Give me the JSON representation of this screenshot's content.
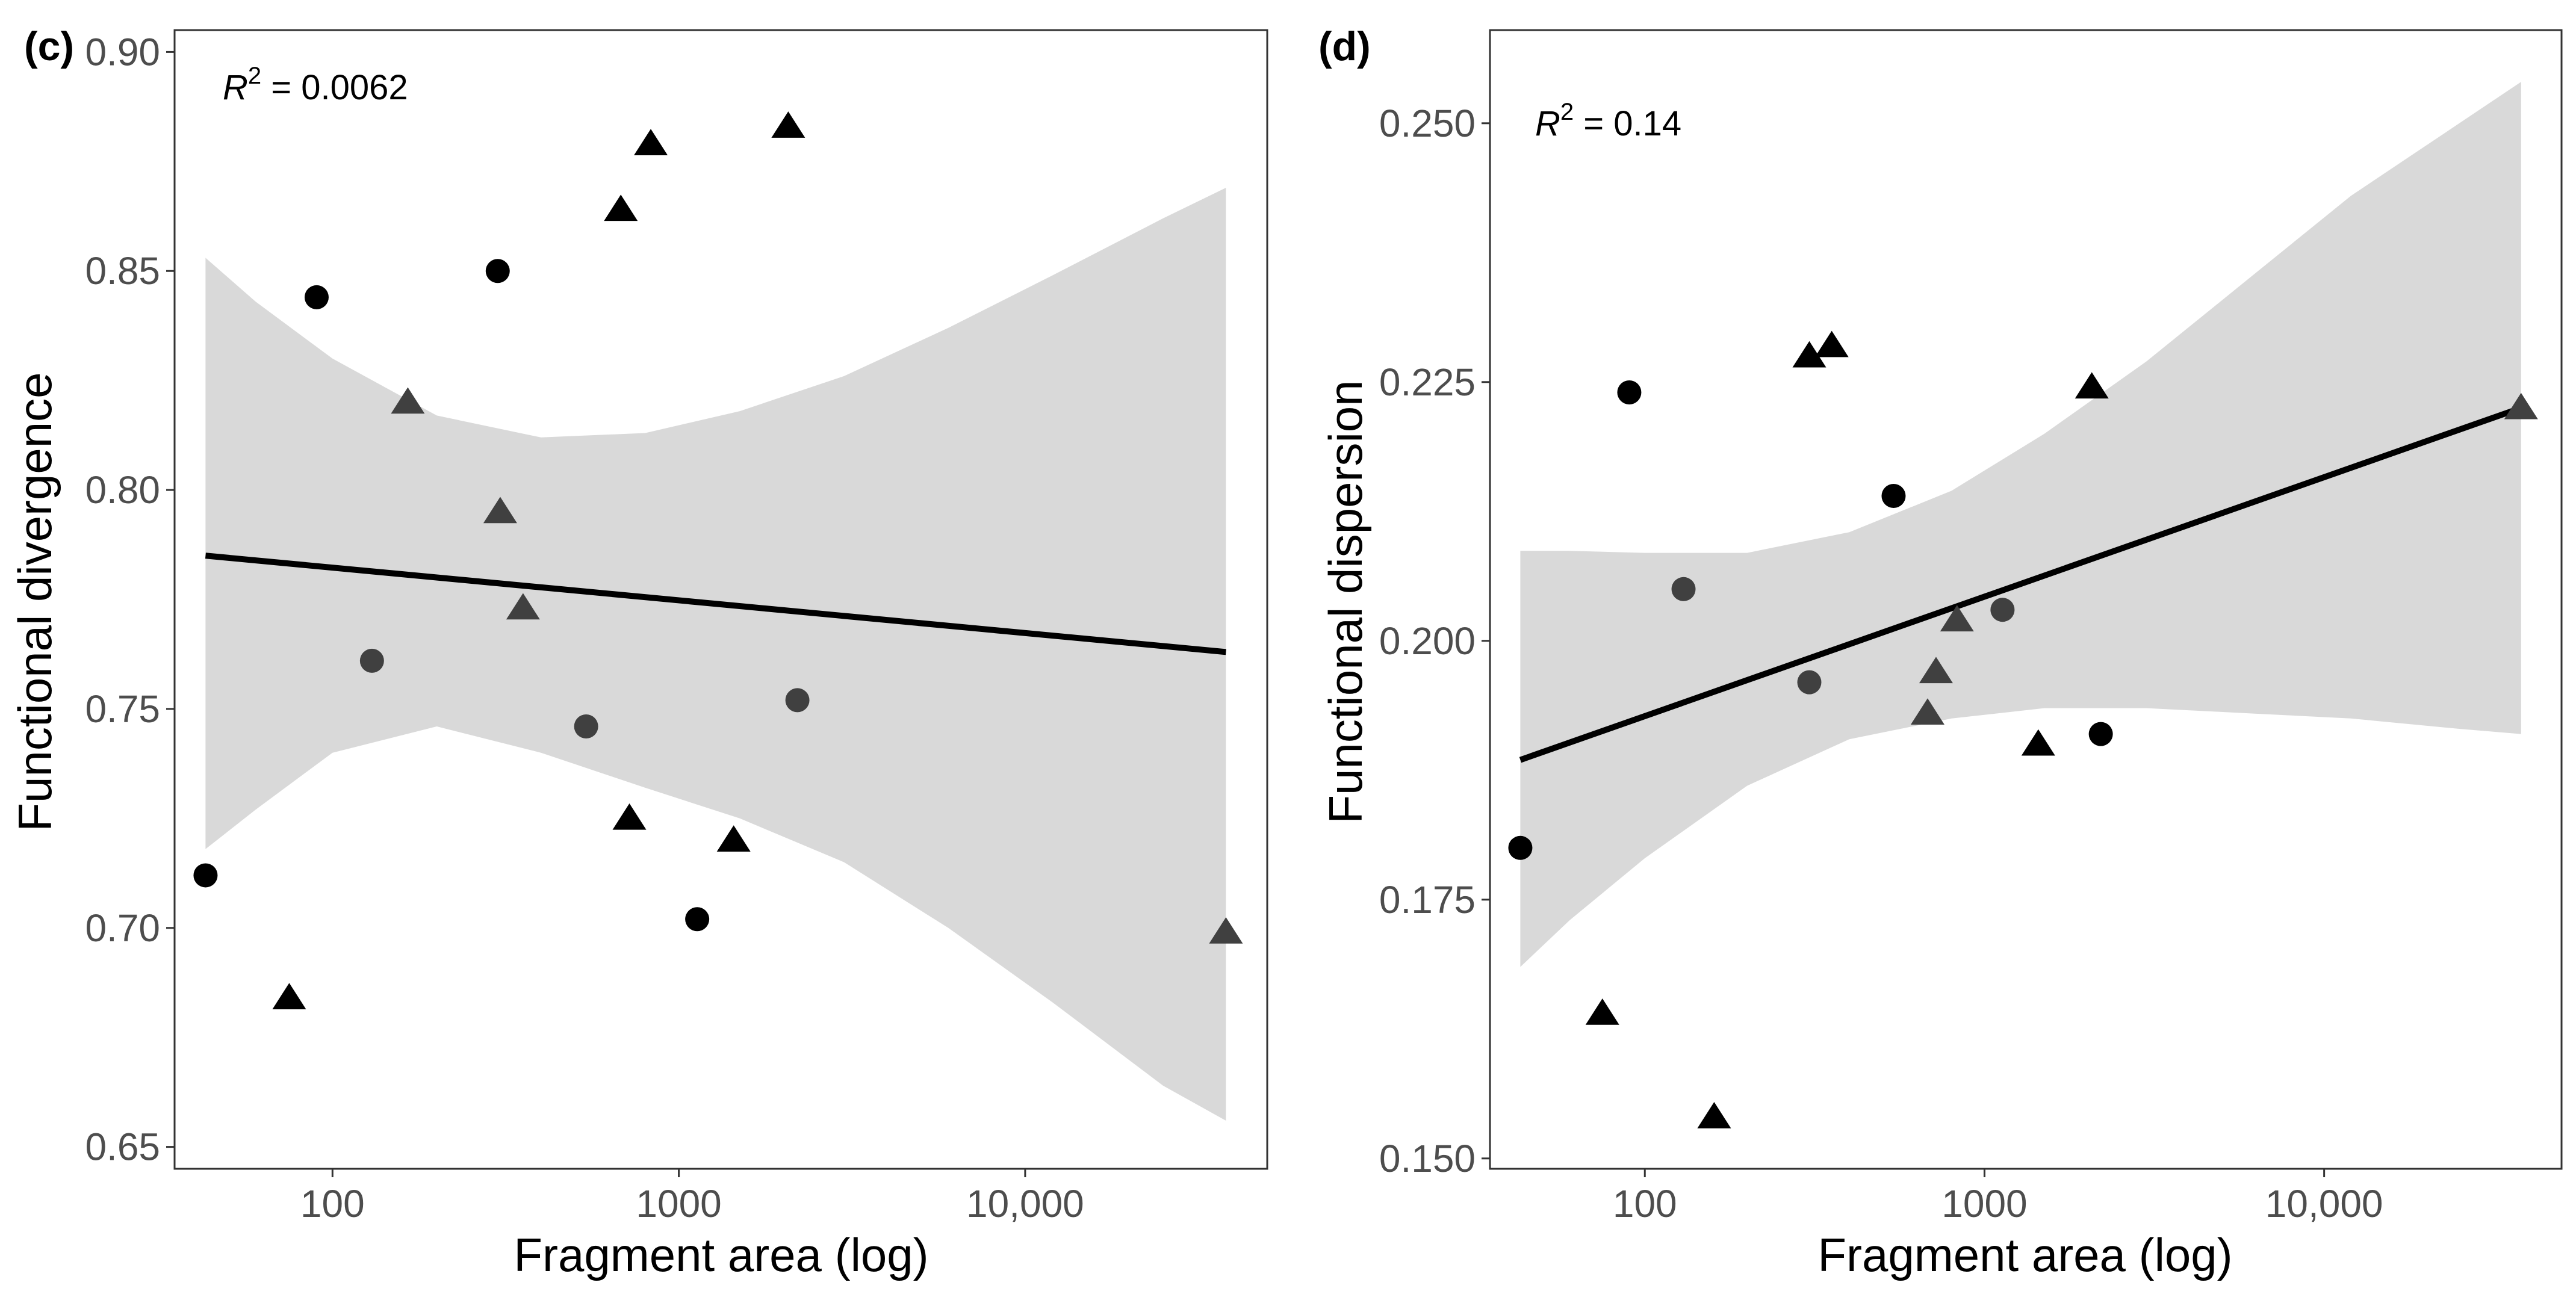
{
  "chart_data": [
    {
      "type": "scatter",
      "panel_label": "(c)",
      "annotation": {
        "r2_symbol": "R",
        "r2_exp": "2",
        "r2_text": " = 0.0062"
      },
      "xlabel": "Fragment area (log)",
      "ylabel": "Functional divergence",
      "x_scale": "log",
      "xlim": [
        35,
        50000
      ],
      "ylim": [
        0.645,
        0.905
      ],
      "x_ticks": [
        100,
        1000,
        10000
      ],
      "x_tick_labels": [
        "100",
        "1000",
        "10,000"
      ],
      "y_ticks": [
        0.65,
        0.7,
        0.75,
        0.8,
        0.85,
        0.9
      ],
      "y_tick_labels": [
        "0.65",
        "0.70",
        "0.75",
        "0.80",
        "0.85",
        "0.90"
      ],
      "grid": false,
      "fit_line": {
        "x": [
          43,
          38000
        ],
        "y": [
          0.785,
          0.763
        ]
      },
      "confidence_band": {
        "x": [
          43,
          60,
          100,
          200,
          400,
          800,
          1500,
          3000,
          6000,
          12000,
          25000,
          38000
        ],
        "upper": [
          0.853,
          0.843,
          0.83,
          0.817,
          0.812,
          0.813,
          0.818,
          0.826,
          0.837,
          0.849,
          0.862,
          0.869
        ],
        "lower": [
          0.718,
          0.727,
          0.74,
          0.746,
          0.74,
          0.732,
          0.725,
          0.715,
          0.7,
          0.683,
          0.664,
          0.656
        ]
      },
      "series": [
        {
          "name": "circle-black",
          "shape": "circle",
          "color": "#000000",
          "points": [
            [
              43,
              0.712
            ],
            [
              90,
              0.844
            ],
            [
              300,
              0.85
            ],
            [
              1130,
              0.702
            ]
          ]
        },
        {
          "name": "circle-gray",
          "shape": "circle",
          "color": "#404040",
          "points": [
            [
              130,
              0.761
            ],
            [
              540,
              0.746
            ],
            [
              2200,
              0.752
            ]
          ]
        },
        {
          "name": "triangle-black",
          "shape": "triangle",
          "color": "#000000",
          "points": [
            [
              75,
              0.684
            ],
            [
              680,
              0.864
            ],
            [
              830,
              0.879
            ],
            [
              2070,
              0.883
            ],
            [
              720,
              0.725
            ],
            [
              1440,
              0.72
            ]
          ]
        },
        {
          "name": "triangle-gray",
          "shape": "triangle",
          "color": "#404040",
          "points": [
            [
              165,
              0.82
            ],
            [
              305,
              0.795
            ],
            [
              355,
              0.773
            ],
            [
              38000,
              0.699
            ]
          ]
        }
      ]
    },
    {
      "type": "scatter",
      "panel_label": "(d)",
      "annotation": {
        "r2_symbol": "R",
        "r2_exp": "2",
        "r2_text": " = 0.14"
      },
      "xlabel": "Fragment area (log)",
      "ylabel": "Functional dispersion",
      "x_scale": "log",
      "xlim": [
        35,
        50000
      ],
      "ylim": [
        0.149,
        0.259
      ],
      "x_ticks": [
        100,
        1000,
        10000
      ],
      "x_tick_labels": [
        "100",
        "1000",
        "10,000"
      ],
      "y_ticks": [
        0.15,
        0.175,
        0.2,
        0.225,
        0.25
      ],
      "y_tick_labels": [
        "0.150",
        "0.175",
        "0.200",
        "0.225",
        "0.250"
      ],
      "grid": false,
      "fit_line": {
        "x": [
          43,
          38000
        ],
        "y": [
          0.1885,
          0.2225
        ]
      },
      "confidence_band": {
        "x": [
          43,
          60,
          100,
          200,
          400,
          800,
          1500,
          3000,
          6000,
          12000,
          25000,
          38000
        ],
        "upper": [
          0.2087,
          0.2087,
          0.2085,
          0.2085,
          0.2105,
          0.2145,
          0.22,
          0.227,
          0.235,
          0.243,
          0.25,
          0.254
        ],
        "lower": [
          0.1685,
          0.173,
          0.179,
          0.186,
          0.1905,
          0.1925,
          0.1935,
          0.1935,
          0.193,
          0.1925,
          0.1915,
          0.191
        ]
      },
      "series": [
        {
          "name": "circle-black",
          "shape": "circle",
          "color": "#000000",
          "points": [
            [
              43,
              0.18
            ],
            [
              90,
              0.224
            ],
            [
              540,
              0.214
            ],
            [
              2200,
              0.191
            ]
          ]
        },
        {
          "name": "circle-gray",
          "shape": "circle",
          "color": "#404040",
          "points": [
            [
              130,
              0.205
            ],
            [
              305,
              0.196
            ],
            [
              1130,
              0.203
            ]
          ]
        },
        {
          "name": "triangle-black",
          "shape": "triangle",
          "color": "#000000",
          "points": [
            [
              75,
              0.164
            ],
            [
              160,
              0.154
            ],
            [
              305,
              0.2275
            ],
            [
              355,
              0.2285
            ],
            [
              1440,
              0.19
            ],
            [
              2070,
              0.2245
            ]
          ]
        },
        {
          "name": "triangle-gray",
          "shape": "triangle",
          "color": "#404040",
          "points": [
            [
              680,
              0.193
            ],
            [
              720,
              0.197
            ],
            [
              830,
              0.202
            ],
            [
              38000,
              0.2225
            ]
          ]
        }
      ]
    }
  ]
}
